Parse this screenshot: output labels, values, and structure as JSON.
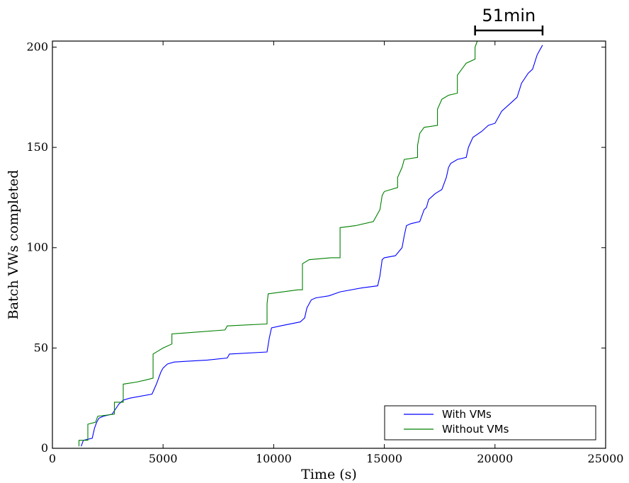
{
  "chart_data": {
    "type": "line",
    "xlabel": "Time (s)",
    "ylabel": "Batch VWs completed",
    "xlim": [
      0,
      25000
    ],
    "ylim": [
      0,
      203
    ],
    "x_ticks": [
      0,
      5000,
      10000,
      15000,
      20000,
      25000
    ],
    "x_tick_labels": [
      "0",
      "5000",
      "10000",
      "15000",
      "20000",
      "25000"
    ],
    "y_ticks": [
      0,
      50,
      100,
      150,
      200
    ],
    "y_tick_labels": [
      "0",
      "50",
      "100",
      "150",
      "200"
    ],
    "legend_position": "lower-right",
    "annotation": {
      "text": "51min",
      "x_start": 19100,
      "x_end": 22150
    },
    "series": [
      {
        "name": "With VMs",
        "color": "#0000ff",
        "points": [
          [
            1300,
            1
          ],
          [
            1400,
            4
          ],
          [
            1800,
            5
          ],
          [
            1900,
            10
          ],
          [
            2000,
            13
          ],
          [
            2100,
            15
          ],
          [
            2300,
            16
          ],
          [
            2700,
            17
          ],
          [
            3000,
            22
          ],
          [
            3200,
            24
          ],
          [
            3500,
            25
          ],
          [
            4500,
            27
          ],
          [
            4700,
            32
          ],
          [
            4900,
            38
          ],
          [
            5000,
            40
          ],
          [
            5200,
            42
          ],
          [
            5500,
            43
          ],
          [
            7000,
            44
          ],
          [
            7900,
            45
          ],
          [
            8000,
            47
          ],
          [
            9700,
            48
          ],
          [
            9800,
            55
          ],
          [
            9900,
            60
          ],
          [
            10300,
            61
          ],
          [
            11200,
            63
          ],
          [
            11400,
            65
          ],
          [
            11500,
            70
          ],
          [
            11700,
            74
          ],
          [
            11900,
            75
          ],
          [
            12500,
            76
          ],
          [
            13000,
            78
          ],
          [
            14000,
            80
          ],
          [
            14700,
            81
          ],
          [
            14800,
            86
          ],
          [
            14900,
            94
          ],
          [
            15000,
            95
          ],
          [
            15500,
            96
          ],
          [
            15800,
            100
          ],
          [
            15900,
            106
          ],
          [
            16000,
            111
          ],
          [
            16200,
            112
          ],
          [
            16600,
            113
          ],
          [
            16800,
            119
          ],
          [
            16900,
            120
          ],
          [
            17000,
            124
          ],
          [
            17300,
            127
          ],
          [
            17600,
            129
          ],
          [
            17800,
            135
          ],
          [
            17900,
            140
          ],
          [
            18000,
            142
          ],
          [
            18300,
            144
          ],
          [
            18700,
            145
          ],
          [
            18800,
            150
          ],
          [
            19000,
            155
          ],
          [
            19400,
            158
          ],
          [
            19700,
            161
          ],
          [
            20000,
            162
          ],
          [
            20300,
            168
          ],
          [
            20700,
            172
          ],
          [
            21000,
            175
          ],
          [
            21200,
            182
          ],
          [
            21500,
            187
          ],
          [
            21700,
            189
          ],
          [
            21900,
            196
          ],
          [
            22050,
            199
          ],
          [
            22150,
            201
          ]
        ]
      },
      {
        "name": "Without VMs",
        "color": "#008000",
        "points": [
          [
            1200,
            1
          ],
          [
            1200,
            4
          ],
          [
            1600,
            4
          ],
          [
            1600,
            12
          ],
          [
            1950,
            13
          ],
          [
            2050,
            16
          ],
          [
            2800,
            17
          ],
          [
            2800,
            23
          ],
          [
            3200,
            23
          ],
          [
            3200,
            32
          ],
          [
            3800,
            33
          ],
          [
            4200,
            34
          ],
          [
            4550,
            35
          ],
          [
            4550,
            47
          ],
          [
            4850,
            49
          ],
          [
            5000,
            50
          ],
          [
            5400,
            52
          ],
          [
            5400,
            57
          ],
          [
            7800,
            59
          ],
          [
            7900,
            61
          ],
          [
            9700,
            62
          ],
          [
            9700,
            72
          ],
          [
            9750,
            77
          ],
          [
            11100,
            79
          ],
          [
            11300,
            79
          ],
          [
            11300,
            92
          ],
          [
            11600,
            94
          ],
          [
            12600,
            95
          ],
          [
            13000,
            95
          ],
          [
            13000,
            110
          ],
          [
            13700,
            111
          ],
          [
            14500,
            113
          ],
          [
            14800,
            119
          ],
          [
            14900,
            126
          ],
          [
            15000,
            128
          ],
          [
            15600,
            130
          ],
          [
            15600,
            135
          ],
          [
            15800,
            140
          ],
          [
            15900,
            144
          ],
          [
            16500,
            145
          ],
          [
            16500,
            151
          ],
          [
            16600,
            157
          ],
          [
            16800,
            160
          ],
          [
            17400,
            161
          ],
          [
            17400,
            169
          ],
          [
            17600,
            174
          ],
          [
            17900,
            176
          ],
          [
            18300,
            177
          ],
          [
            18300,
            186
          ],
          [
            18500,
            189
          ],
          [
            18700,
            192
          ],
          [
            19100,
            194
          ],
          [
            19100,
            200
          ],
          [
            19200,
            203
          ]
        ]
      }
    ]
  }
}
